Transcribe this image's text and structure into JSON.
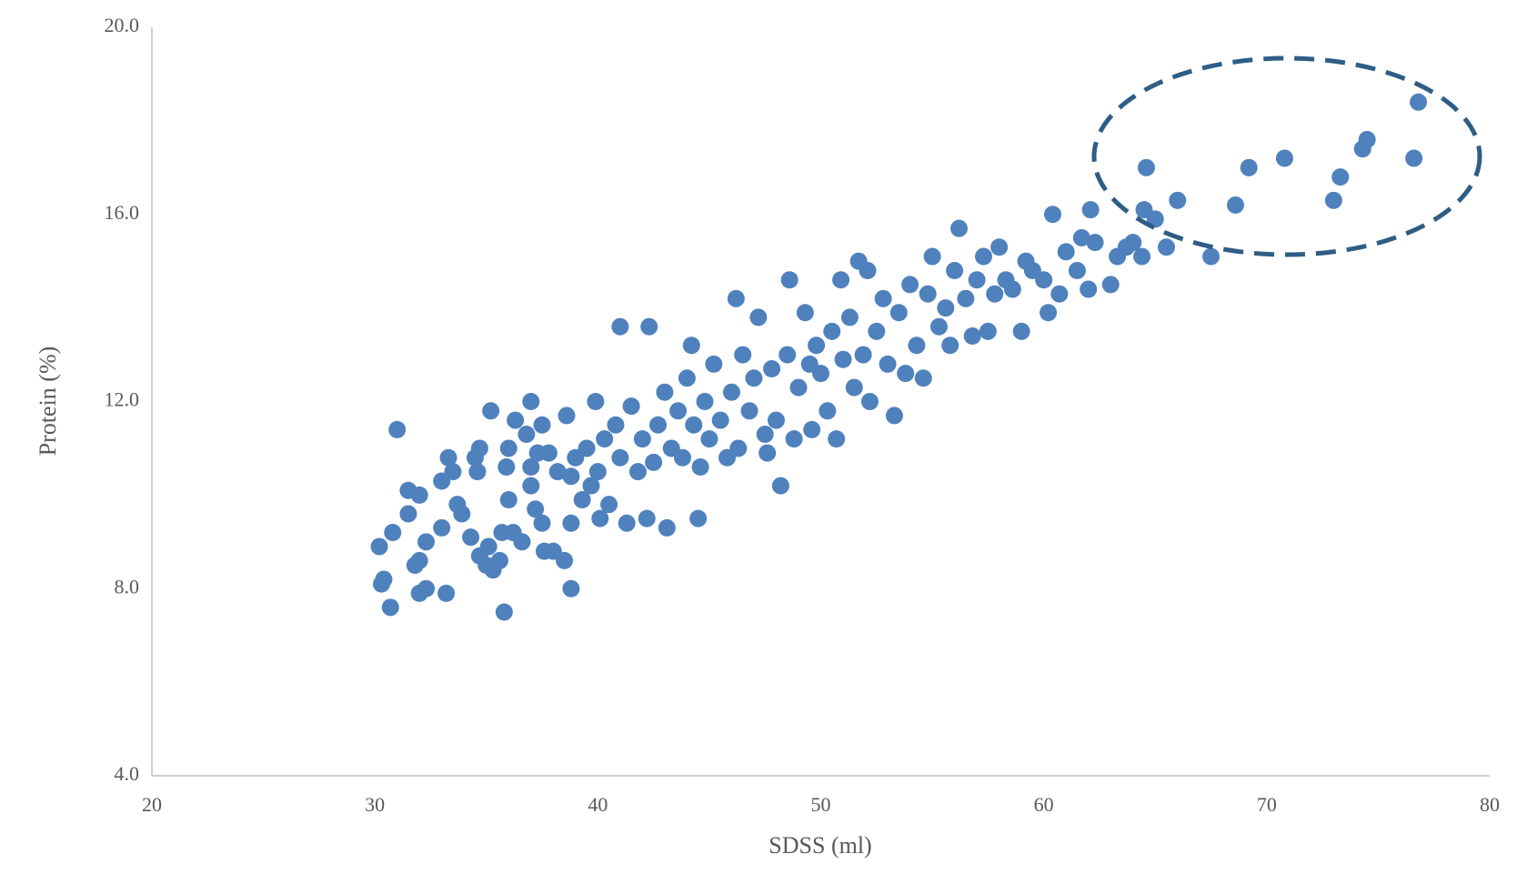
{
  "chart_data": {
    "type": "scatter",
    "xlabel": "SDSS (ml)",
    "ylabel": "Protein (%)",
    "color": "#4f81bd",
    "xlim": [
      20,
      80
    ],
    "xticks": [
      20,
      30,
      40,
      50,
      60,
      70,
      80
    ],
    "ylim": [
      4,
      20
    ],
    "yticks": [
      {
        "value": 4,
        "label": "4.0"
      },
      {
        "value": 8,
        "label": "8.0"
      },
      {
        "value": 12,
        "label": "12.0"
      },
      {
        "value": 16,
        "label": "16.0"
      },
      {
        "value": 20,
        "label": "20.0"
      }
    ],
    "x": [
      31,
      30.2,
      30.3,
      30.4,
      30.7,
      30.8,
      31.5,
      31.5,
      32,
      31.8,
      32,
      32.3,
      32,
      32.3,
      33.2,
      33.0,
      33.0,
      33.3,
      33.5,
      33.7,
      33.9,
      34.3,
      34.5,
      34.7,
      34.6,
      34.7,
      35,
      35.1,
      35.3,
      35.6,
      35.2,
      35.7,
      35.8,
      35.9,
      36,
      36,
      36.2,
      36.3,
      36.6,
      36.8,
      37,
      37,
      37,
      37.2,
      37.3,
      37.5,
      37.5,
      37.6,
      37.8,
      38.0,
      38.2,
      38.5,
      38.6,
      38.8,
      38.8,
      38.8,
      39,
      39.3,
      39.5,
      39.7,
      39.9,
      40,
      40.1,
      40.3,
      40.5,
      40.8,
      41,
      41,
      41.3,
      41.5,
      41.8,
      42,
      42.2,
      42.3,
      42.5,
      42.7,
      43,
      43.1,
      43.3,
      43.6,
      43.8,
      44,
      44.2,
      44.3,
      44.5,
      44.6,
      44.8,
      45,
      45.2,
      45.5,
      45.8,
      46,
      46.2,
      46.3,
      46.5,
      46.8,
      47,
      47.2,
      47.5,
      47.6,
      47.8,
      48,
      48.2,
      48.5,
      48.6,
      48.8,
      49,
      49.3,
      49.5,
      49.6,
      49.8,
      50,
      50.3,
      50.5,
      50.7,
      50.9,
      51,
      51.3,
      51.5,
      51.7,
      51.9,
      52.1,
      52.2,
      52.5,
      52.8,
      53,
      53.3,
      53.5,
      53.8,
      54,
      54.3,
      54.6,
      54.8,
      55,
      55.3,
      55.6,
      55.8,
      56,
      56.2,
      56.5,
      56.8,
      57,
      57.3,
      57.5,
      57.8,
      58,
      58.3,
      58.6,
      59,
      59.2,
      59.5,
      60,
      60.2,
      60.4,
      60.7,
      61,
      61.5,
      61.7,
      62,
      62.1,
      62.3,
      63,
      63.3,
      63.7,
      64,
      64.4,
      64.5,
      64.6,
      65,
      65.5,
      66,
      67.5,
      68.6,
      69.2,
      70.8,
      73,
      73.3,
      74.3,
      74.5,
      76.6,
      76.8
    ],
    "values": [
      11.4,
      8.9,
      8.1,
      8.2,
      7.6,
      9.2,
      9.6,
      10.1,
      10,
      8.5,
      8.6,
      9.0,
      7.9,
      8.0,
      7.9,
      9.3,
      10.3,
      10.8,
      10.5,
      9.8,
      9.6,
      9.1,
      10.8,
      11.0,
      10.5,
      8.7,
      8.5,
      8.9,
      8.4,
      8.6,
      11.8,
      9.2,
      7.5,
      10.6,
      11.0,
      9.9,
      9.2,
      11.6,
      9.0,
      11.3,
      12,
      10.6,
      10.2,
      9.7,
      10.9,
      11.5,
      9.4,
      8.8,
      10.9,
      8.8,
      10.5,
      8.6,
      11.7,
      8.0,
      9.4,
      10.4,
      10.8,
      9.9,
      11.0,
      10.2,
      12.0,
      10.5,
      9.5,
      11.2,
      9.8,
      11.5,
      13.6,
      10.8,
      9.4,
      11.9,
      10.5,
      11.2,
      9.5,
      13.6,
      10.7,
      11.5,
      12.2,
      9.3,
      11.0,
      11.8,
      10.8,
      12.5,
      13.2,
      11.5,
      9.5,
      10.6,
      12.0,
      11.2,
      12.8,
      11.6,
      10.8,
      12.2,
      14.2,
      11.0,
      13.0,
      11.8,
      12.5,
      13.8,
      11.3,
      10.9,
      12.7,
      11.6,
      10.2,
      13.0,
      14.6,
      11.2,
      12.3,
      13.9,
      12.8,
      11.4,
      13.2,
      12.6,
      11.8,
      13.5,
      11.2,
      14.6,
      12.9,
      13.8,
      12.3,
      15.0,
      13.0,
      14.8,
      12.0,
      13.5,
      14.2,
      12.8,
      11.7,
      13.9,
      12.6,
      14.5,
      13.2,
      12.5,
      14.3,
      15.1,
      13.6,
      14.0,
      13.2,
      14.8,
      15.7,
      14.2,
      13.4,
      14.6,
      15.1,
      13.5,
      14.3,
      15.3,
      14.6,
      14.4,
      13.5,
      15.0,
      14.8,
      14.6,
      13.9,
      16.0,
      14.3,
      15.2,
      14.8,
      15.5,
      14.4,
      16.1,
      15.4,
      14.5,
      15.1,
      15.3,
      15.4,
      15.1,
      16.1,
      17.0,
      15.9,
      15.3,
      16.3,
      15.1,
      16.2,
      17.0,
      17.2,
      16.3,
      16.8,
      17.4,
      17.6,
      17.2,
      18.4
    ]
  }
}
